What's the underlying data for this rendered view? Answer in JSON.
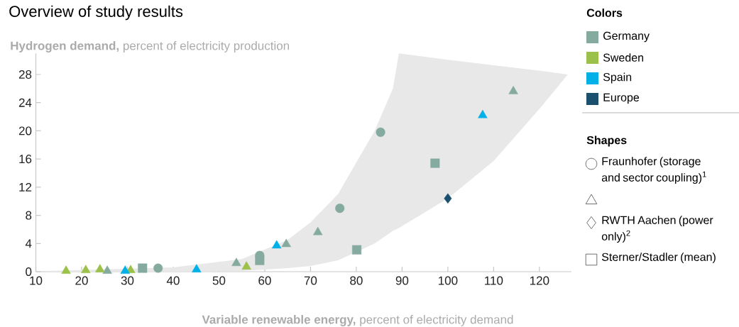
{
  "chart_data": {
    "type": "scatter",
    "title": "Overview of study results",
    "ylabel": "**Hydrogen demand,** percent of electricity production",
    "xlabel": "**Variable renewable energy,** percent of electricity demand",
    "xlim": [
      10,
      127
    ],
    "xticks": [
      10,
      20,
      30,
      40,
      50,
      60,
      70,
      80,
      90,
      100,
      110,
      120
    ],
    "ylim": [
      0,
      31
    ],
    "yticks": [
      0,
      4,
      8,
      12,
      16,
      20,
      24,
      28
    ],
    "legend": "right",
    "legend_title": "Colors",
    "annotations": [
      "Shapes"
    ],
    "series": [
      {
        "type": "area",
        "color": "#e8e8e8",
        "x": [
          12,
          40,
          55,
          65,
          70,
          76,
          84,
          88,
          89.3,
          100,
          110,
          120.5,
          126.2
        ],
        "values": [
          null,
          null,
          null,
          null,
          null,
          null,
          null,
          null,
          null,
          null,
          null,
          null,
          null
        ],
        "lower": [
          0,
          0,
          0.1,
          0.5,
          0.8,
          1.6,
          4,
          5.8,
          6.2,
          10.4,
          15.7,
          23.5,
          28
        ],
        "upper": [
          0.1,
          0.6,
          1.8,
          4.5,
          7,
          11,
          20,
          26,
          31,
          30.1,
          29.3,
          28.5,
          28
        ]
      },
      {
        "name": "Germany",
        "color": "#85aaa0",
        "marker": "square",
        "x": [
          33.3,
          58.9,
          80.1,
          97.2
        ],
        "values": [
          0.5,
          1.6,
          3.1,
          15.4
        ]
      },
      {
        "color": "#85aaa0",
        "marker": "circle",
        "x": [
          36.7,
          58.9,
          76.4,
          85.3
        ],
        "values": [
          0.5,
          2.3,
          9.0,
          19.8
        ]
      },
      {
        "color": "#85aaa0",
        "marker": "triangle",
        "x": [
          25.6,
          53.8,
          64.7,
          71.6,
          114.3
        ],
        "values": [
          0.1,
          1.2,
          3.9,
          5.6,
          25.6
        ]
      },
      {
        "name": "Sweden",
        "color": "#9bc14b",
        "marker": "triangle",
        "x": [
          16.6,
          20.9,
          24.0,
          30.7,
          56.0
        ],
        "values": [
          0.1,
          0.2,
          0.3,
          0.2,
          0.7
        ]
      },
      {
        "name": "Spain",
        "color": "#00b0e6",
        "marker": "triangle",
        "x": [
          29.5,
          45.1,
          62.6,
          107.6
        ],
        "values": [
          0.1,
          0.3,
          3.7,
          22.2
        ]
      },
      {
        "name": "Europe",
        "color": "#1b4f6e",
        "marker": "diamond",
        "x": [
          100
        ],
        "values": [
          10.4
        ]
      },
      {
        "name": "Fraunhofer (storage and sector coupling)$^{1}$",
        "marker": "circle"
      },
      {
        "marker": "triangle"
      },
      {
        "name": "RWTH Aachen (power only)$^{2}$",
        "marker": "diamond"
      },
      {
        "name": "Sterner/Stadler (mean)",
        "marker": "square"
      }
    ]
  }
}
